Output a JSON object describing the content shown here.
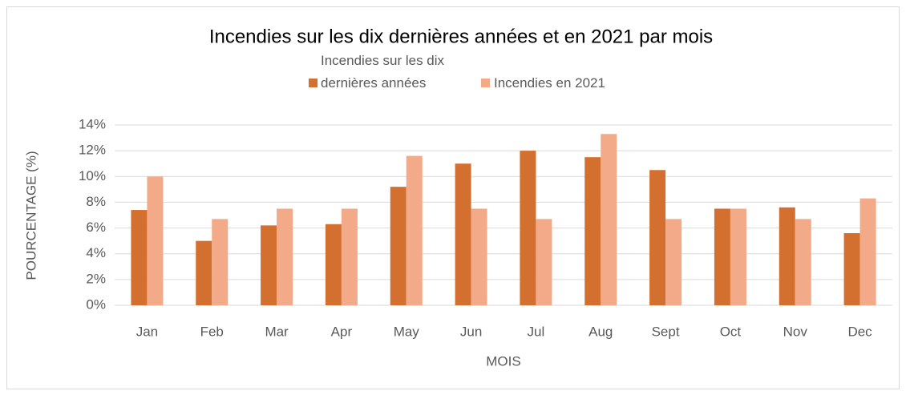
{
  "chart_data": {
    "type": "bar",
    "title": "Incendies sur les dix dernières années et en 2021 par mois",
    "x_label": "MOIS",
    "y_label": "POURCENTAGE (%)",
    "categories": [
      "Jan",
      "Feb",
      "Mar",
      "Apr",
      "May",
      "Jun",
      "Jul",
      "Aug",
      "Sept",
      "Oct",
      "Nov",
      "Dec"
    ],
    "series": [
      {
        "name": "Incendies sur les dix dernières années",
        "color": "#d4702f",
        "values": [
          7.4,
          5.0,
          6.2,
          6.3,
          9.2,
          11.0,
          12.0,
          11.5,
          10.5,
          7.5,
          7.6,
          5.6
        ]
      },
      {
        "name": "Incendies en 2021",
        "color": "#f3aa89",
        "values": [
          10.0,
          6.7,
          7.5,
          7.5,
          11.6,
          7.5,
          6.7,
          13.3,
          6.7,
          7.5,
          6.7,
          8.3
        ]
      }
    ],
    "ylim": [
      0,
      14
    ],
    "yticks": [
      {
        "value": 0,
        "label": "0%"
      },
      {
        "value": 2,
        "label": "2%"
      },
      {
        "value": 4,
        "label": "4%"
      },
      {
        "value": 6,
        "label": "6%"
      },
      {
        "value": 8,
        "label": "8%"
      },
      {
        "value": 10,
        "label": "10%"
      },
      {
        "value": 12,
        "label": "12%"
      },
      {
        "value": 14,
        "label": "14%"
      }
    ],
    "grid": true,
    "legend": "top"
  }
}
